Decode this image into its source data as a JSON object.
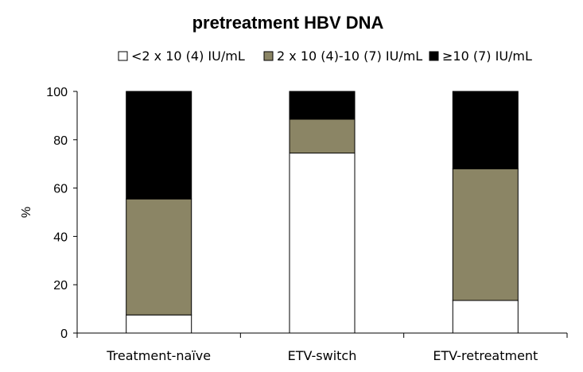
{
  "chart_data": {
    "type": "bar",
    "stacked": true,
    "title": "pretreatment HBV DNA",
    "xlabel": "",
    "ylabel": "%",
    "ylim": [
      0,
      100
    ],
    "yticks": [
      0,
      20,
      40,
      60,
      80,
      100
    ],
    "categories": [
      "Treatment-naïve",
      "ETV-switch",
      "ETV-retreatment"
    ],
    "series": [
      {
        "name": "<2 x 10 (4) IU/mL",
        "color": "#ffffff",
        "values": [
          7.5,
          74.5,
          13.5
        ]
      },
      {
        "name": "2 x 10 (4)-10 (7) IU/mL",
        "color": "#8b8565",
        "values": [
          48,
          14,
          54.5
        ]
      },
      {
        "name": "≥10 (7) IU/mL",
        "color": "#000000",
        "values": [
          44.5,
          11.5,
          32
        ]
      }
    ],
    "legend_position": "top"
  }
}
